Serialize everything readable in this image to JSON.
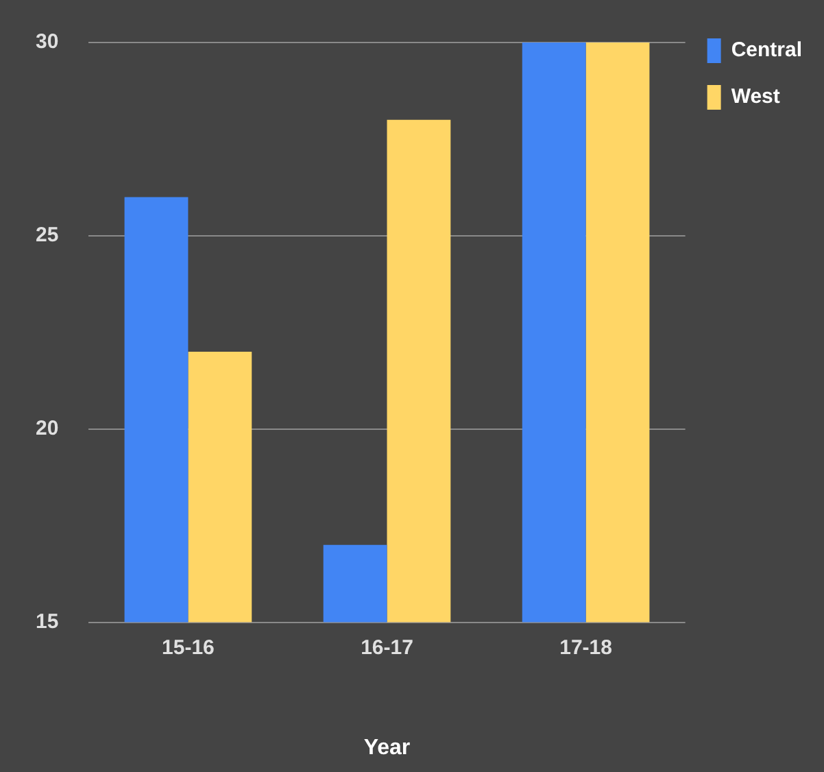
{
  "chart_data": {
    "type": "bar",
    "xlabel": "Year",
    "categories": [
      "15-16",
      "16-17",
      "17-18"
    ],
    "series": [
      {
        "name": "Central",
        "color": "#4285f4",
        "values": [
          26,
          17,
          30
        ]
      },
      {
        "name": "West",
        "color": "#ffd666",
        "values": [
          22,
          28,
          30
        ]
      }
    ],
    "ylim": [
      15,
      30
    ],
    "yticks": [
      15,
      20,
      25,
      30
    ],
    "grid": "y",
    "legend": "top right"
  }
}
